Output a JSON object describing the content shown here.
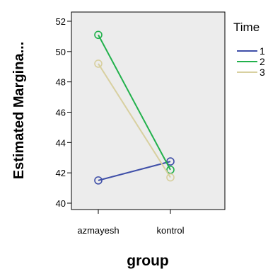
{
  "chart_data": {
    "type": "line",
    "xlabel": "group",
    "ylabel": "Estimated Margina...",
    "categories": [
      "azmayesh",
      "kontrol"
    ],
    "ylim": [
      40,
      52
    ],
    "yticks": [
      40,
      42,
      44,
      46,
      48,
      50,
      52
    ],
    "grid": false,
    "legend": {
      "title": "Time",
      "placement": "right"
    },
    "series": [
      {
        "name": "1",
        "values": [
          41.5,
          42.75
        ],
        "color": "#3f4fa8"
      },
      {
        "name": "2",
        "values": [
          51.1,
          42.2
        ],
        "color": "#22b14c"
      },
      {
        "name": "3",
        "values": [
          49.2,
          41.7
        ],
        "color": "#d8d0a0"
      }
    ],
    "plot_background": "#ececec"
  }
}
